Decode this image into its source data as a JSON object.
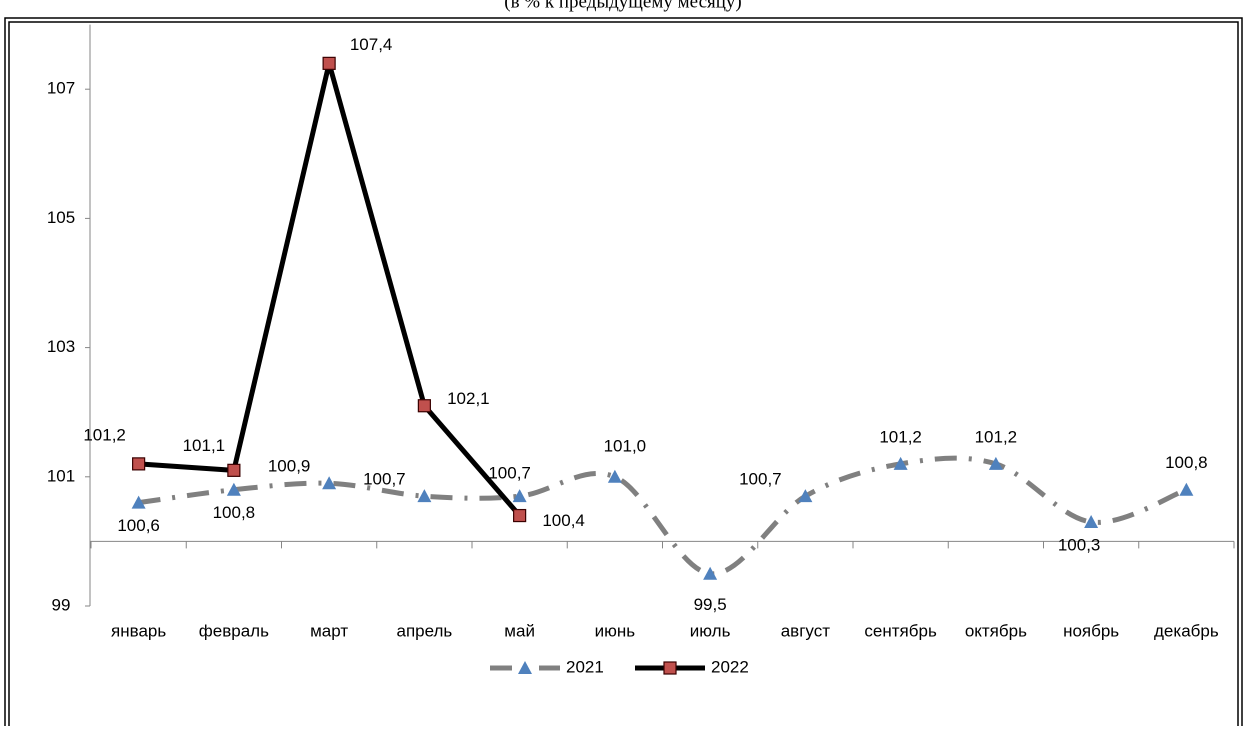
{
  "chart_data": {
    "type": "line",
    "subtitle": "(в % к предыдущему месяцу)",
    "categories": [
      "январь",
      "февраль",
      "март",
      "апрель",
      "май",
      "июнь",
      "июль",
      "август",
      "сентябрь",
      "октябрь",
      "ноябрь",
      "декабрь"
    ],
    "series": [
      {
        "name": "2021",
        "color": "#808080",
        "marker_color": "#4f81bd",
        "marker": "triangle",
        "dash": true,
        "smooth": true,
        "values": [
          100.6,
          100.8,
          100.9,
          100.7,
          100.7,
          101.0,
          99.5,
          100.7,
          101.2,
          101.2,
          100.3,
          100.8
        ],
        "value_labels": [
          "100,6",
          "100,8",
          "100,9",
          "100,7",
          "100,7",
          "101,0",
          "99,5",
          "100,7",
          "101,2",
          "101,2",
          "100,3",
          "100,8"
        ]
      },
      {
        "name": "2022",
        "color": "#000000",
        "marker_color": "#c0504d",
        "marker": "square",
        "dash": false,
        "smooth": false,
        "values": [
          101.2,
          101.1,
          107.4,
          102.1,
          100.4,
          null,
          null,
          null,
          null,
          null,
          null,
          null
        ],
        "value_labels": [
          "101,2",
          "101,1",
          "107,4",
          "102,1",
          "100,4",
          null,
          null,
          null,
          null,
          null,
          null,
          null
        ]
      }
    ],
    "ylim": [
      99,
      108
    ],
    "yticks": [
      99,
      101,
      103,
      105,
      107
    ],
    "xaxis_crosses": 100,
    "grid": false,
    "legend": "bottom"
  }
}
